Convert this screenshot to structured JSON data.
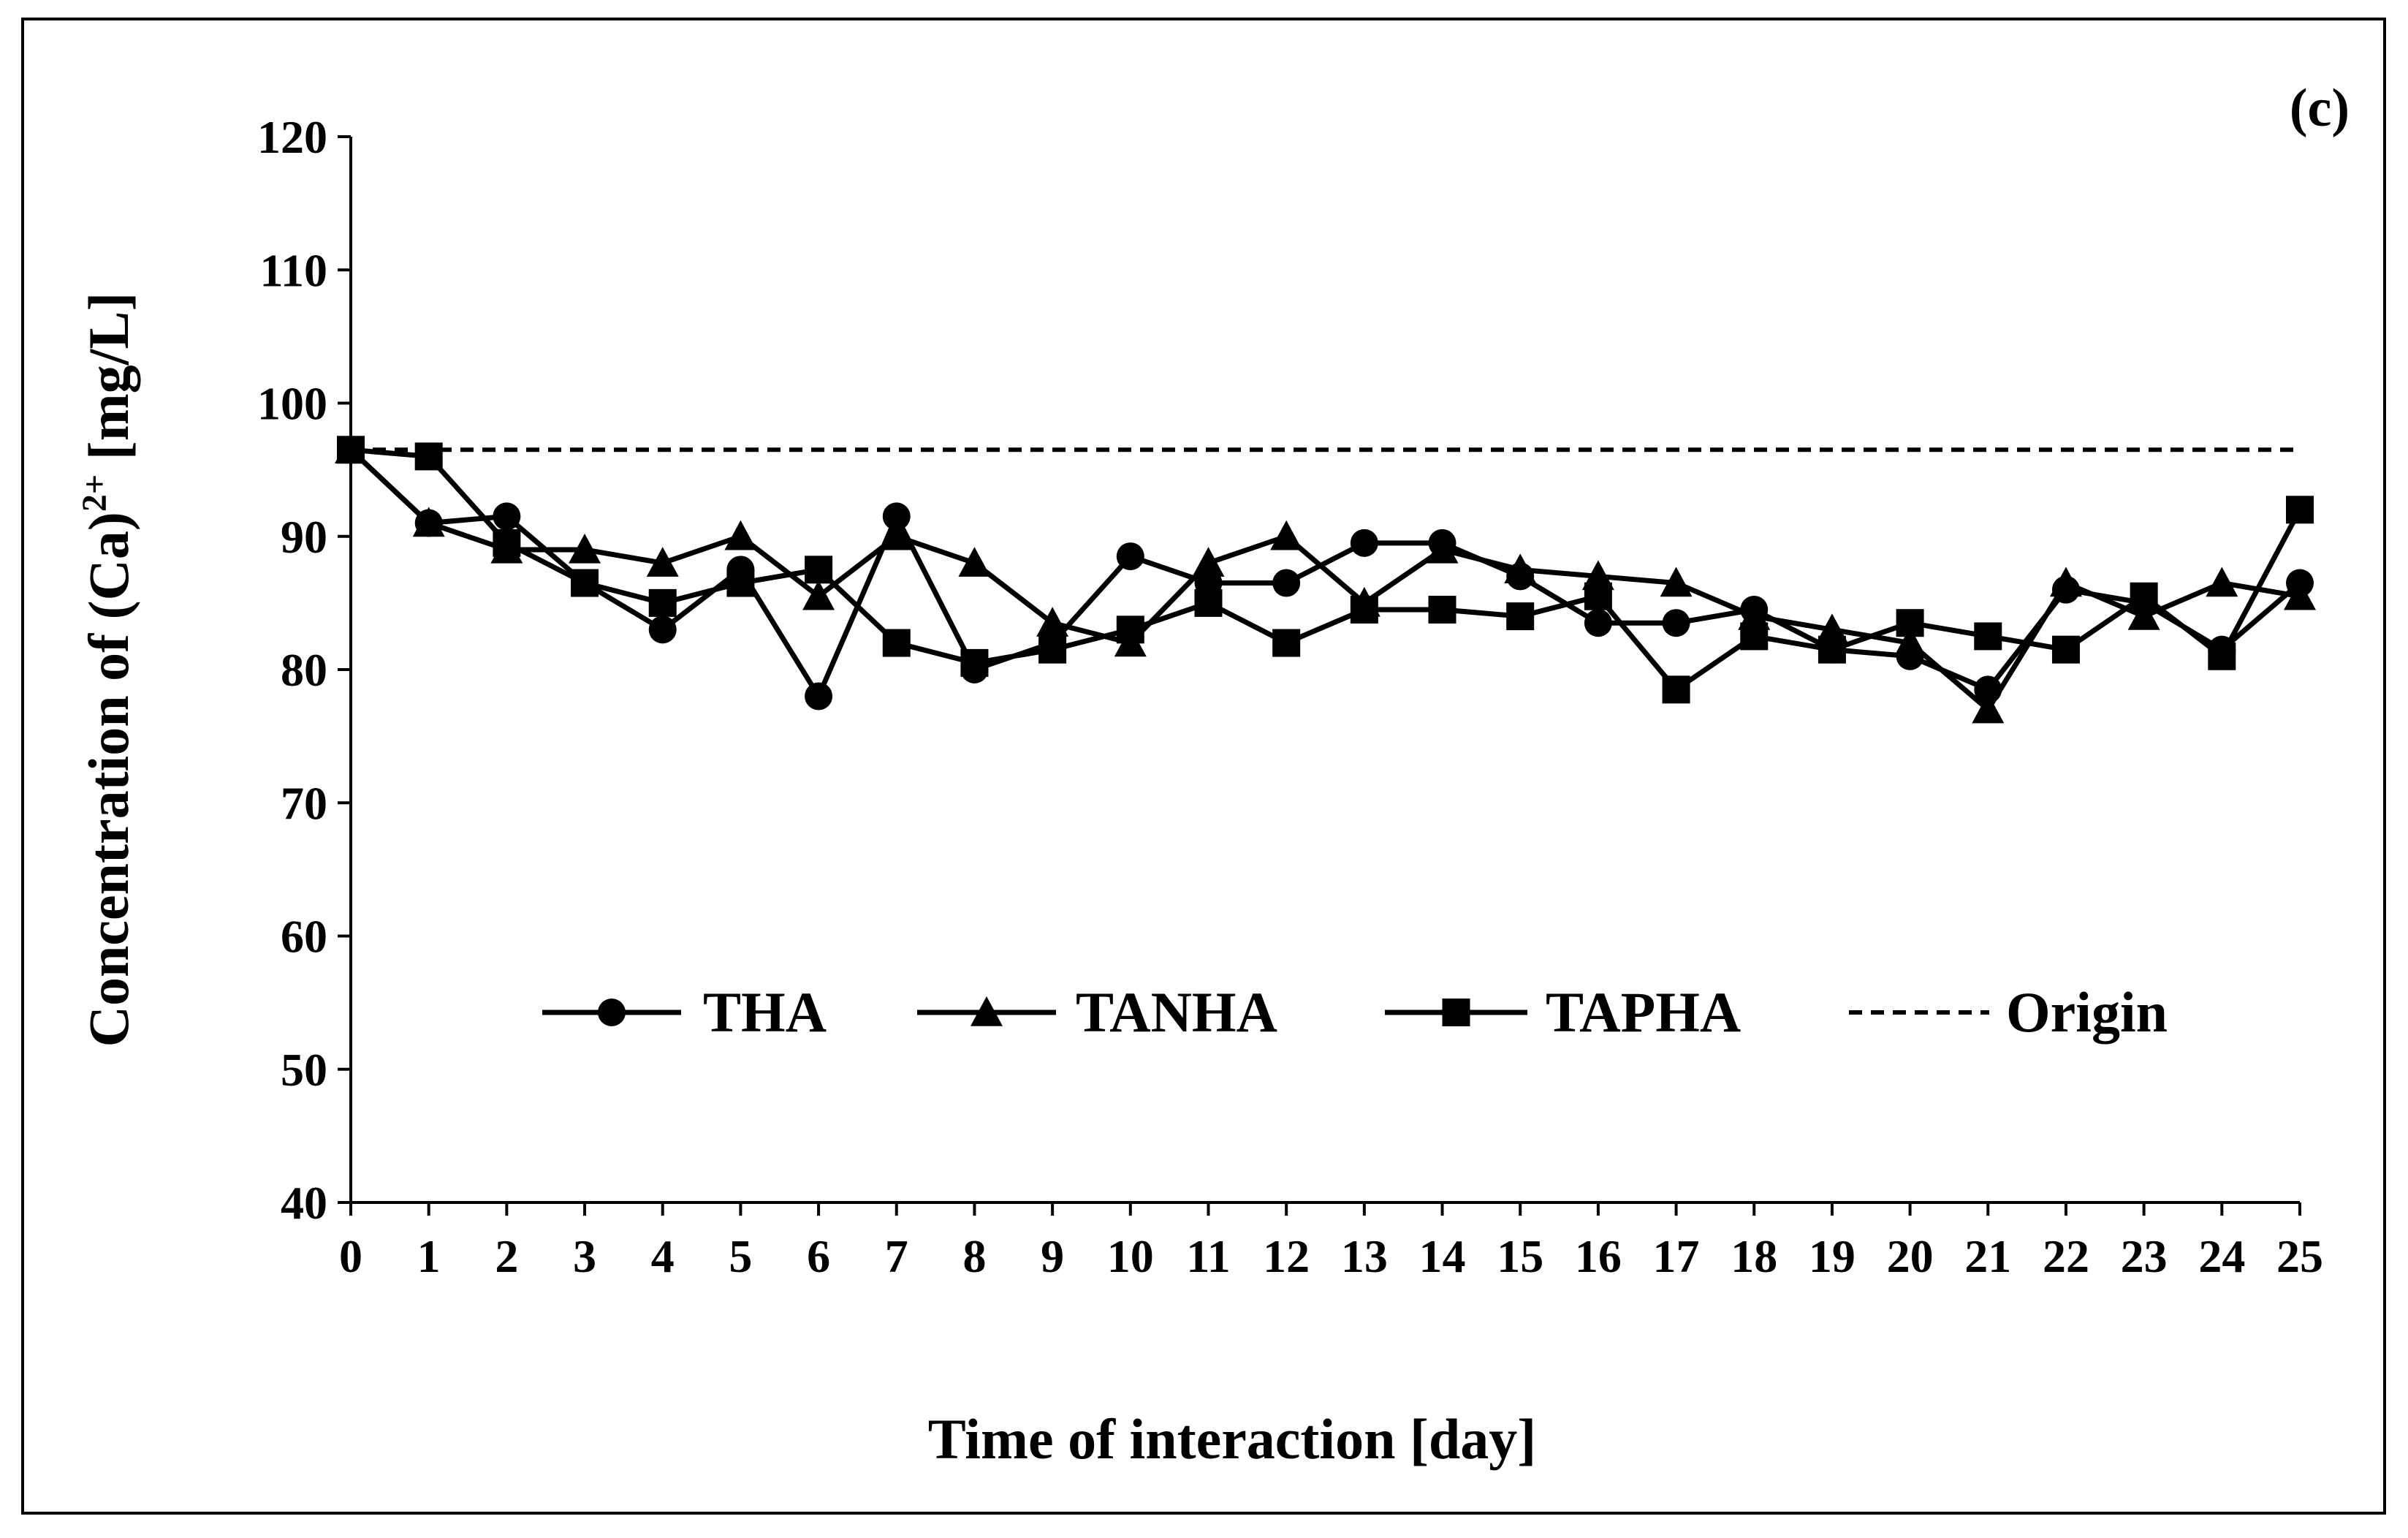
{
  "chart_data": {
    "type": "line",
    "panel_label": "(c)",
    "title": "",
    "xlabel": "Time of interaction [day]",
    "ylabel": "Concentration of (Ca)",
    "ylabel_sup": "2+",
    "ylabel_suffix": " [mg/L]",
    "xlim": [
      0,
      25
    ],
    "ylim": [
      40,
      120
    ],
    "x_ticks": [
      0,
      1,
      2,
      3,
      4,
      5,
      6,
      7,
      8,
      9,
      10,
      11,
      12,
      13,
      14,
      15,
      16,
      17,
      18,
      19,
      20,
      21,
      22,
      23,
      24,
      25
    ],
    "y_ticks": [
      40,
      50,
      60,
      70,
      80,
      90,
      100,
      110,
      120
    ],
    "x": [
      0,
      1,
      2,
      3,
      4,
      5,
      6,
      7,
      8,
      9,
      10,
      11,
      12,
      13,
      14,
      15,
      16,
      17,
      18,
      19,
      20,
      21,
      22,
      23,
      24,
      25
    ],
    "series": [
      {
        "name": "THA",
        "marker": "circle",
        "values": [
          96.5,
          91,
          91.5,
          86.5,
          83,
          87.5,
          78,
          91.5,
          80,
          82,
          88.5,
          86.5,
          86.5,
          89.5,
          89.5,
          87,
          83.5,
          83.5,
          84.5,
          81.5,
          81,
          78.5,
          86,
          85,
          81.5,
          86.5
        ]
      },
      {
        "name": "TANHA",
        "marker": "triangle",
        "values": [
          96.5,
          91,
          89,
          89,
          88,
          90,
          85.5,
          90,
          88,
          83.5,
          82,
          88,
          90,
          85,
          89,
          87.5,
          87,
          86.5,
          84,
          83,
          82,
          77,
          86.5,
          84,
          86.5,
          85.5
        ]
      },
      {
        "name": "TAPHA",
        "marker": "square",
        "values": [
          96.5,
          96,
          89.5,
          86.5,
          85,
          86.5,
          87.5,
          82,
          80.5,
          81.5,
          83,
          85,
          82,
          84.5,
          84.5,
          84,
          85.5,
          78.5,
          82.5,
          81.5,
          83.5,
          82.5,
          81.5,
          85.5,
          81,
          92
        ]
      },
      {
        "name": "Origin",
        "marker": "none",
        "dashed": true,
        "values": [
          96.5,
          96.5,
          96.5,
          96.5,
          96.5,
          96.5,
          96.5,
          96.5,
          96.5,
          96.5,
          96.5,
          96.5,
          96.5,
          96.5,
          96.5,
          96.5,
          96.5,
          96.5,
          96.5,
          96.5,
          96.5,
          96.5,
          96.5,
          96.5,
          96.5,
          96.5
        ]
      }
    ],
    "legend_position": "inside-bottom-center",
    "grid": false
  }
}
